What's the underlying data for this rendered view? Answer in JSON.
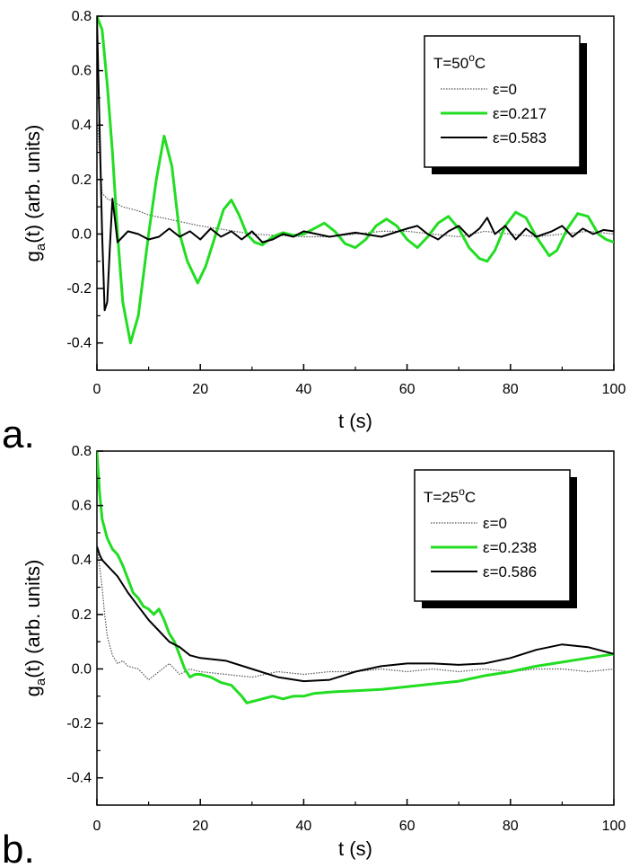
{
  "chart_data": [
    {
      "type": "line",
      "panel_label": "a.",
      "xlabel": "t (s)",
      "ylabel_main": "g",
      "ylabel_sub": "a",
      "ylabel_rest": "(t) (arb. units)",
      "xlim": [
        0,
        100
      ],
      "ylim": [
        -0.5,
        0.8
      ],
      "xticks": [
        0,
        20,
        40,
        60,
        80,
        100
      ],
      "xtick_labels": [
        "0",
        "20",
        "40",
        "60",
        "80",
        "100"
      ],
      "yticks": [
        0.8,
        0.6,
        0.4,
        0.2,
        0.0,
        -0.2,
        -0.4
      ],
      "ytick_labels": [
        "0.8",
        "0.6",
        "0.4",
        "0.2",
        "0.0",
        "-0.2",
        "-0.4"
      ],
      "legend": {
        "title_main": "T=50",
        "title_sup": "o",
        "title_tail": "C",
        "position": "top-right",
        "entries": [
          "ε=0",
          "ε=0.217",
          "ε=0.583"
        ]
      },
      "series": [
        {
          "name": "ε=0",
          "color": "#555555",
          "style": "dotted",
          "x": [
            0,
            0.5,
            1,
            2,
            3,
            5,
            8,
            10,
            15,
            20,
            25,
            30,
            35,
            40,
            45,
            50,
            55,
            60,
            65,
            70,
            75,
            80,
            85,
            90,
            95,
            100
          ],
          "y": [
            0.45,
            0.3,
            0.15,
            0.13,
            0.12,
            0.1,
            0.085,
            0.07,
            0.05,
            0.03,
            0.015,
            0.0,
            -0.005,
            -0.01,
            -0.01,
            0.0,
            0.01,
            0.01,
            0.0,
            -0.01,
            0.01,
            0.0,
            -0.01,
            0.0,
            0.01,
            0.0
          ]
        },
        {
          "name": "ε=0.217",
          "color": "#22dd22",
          "style": "solid",
          "x": [
            0,
            1,
            2,
            3,
            4,
            5,
            6.5,
            8,
            10,
            11.5,
            13,
            14.5,
            16,
            17.5,
            19.5,
            21,
            23,
            24.5,
            26,
            27.5,
            29,
            30.5,
            32,
            34,
            36,
            38,
            40,
            42,
            44,
            46,
            48,
            50,
            52,
            54,
            56,
            58,
            60,
            62,
            64,
            66,
            68,
            70,
            72,
            74,
            75.5,
            77,
            79,
            81,
            83,
            85,
            87.5,
            89,
            91,
            93,
            95,
            97,
            98.5,
            100
          ],
          "y": [
            0.8,
            0.75,
            0.55,
            0.3,
            0.0,
            -0.25,
            -0.4,
            -0.3,
            0.0,
            0.2,
            0.36,
            0.25,
            0.0,
            -0.1,
            -0.18,
            -0.12,
            0.0,
            0.09,
            0.125,
            0.07,
            0.0,
            -0.03,
            -0.04,
            -0.01,
            0.005,
            -0.005,
            0.0,
            0.02,
            0.04,
            0.01,
            -0.035,
            -0.05,
            -0.02,
            0.03,
            0.055,
            0.03,
            -0.02,
            -0.05,
            -0.01,
            0.04,
            0.065,
            0.02,
            -0.05,
            -0.09,
            -0.1,
            -0.06,
            0.03,
            0.08,
            0.06,
            -0.01,
            -0.08,
            -0.06,
            0.02,
            0.075,
            0.065,
            0.0,
            -0.02,
            -0.03
          ]
        },
        {
          "name": "ε=0.583",
          "color": "#000000",
          "style": "solid",
          "x": [
            0,
            0.5,
            1,
            1.5,
            2,
            2.5,
            3,
            3.5,
            4,
            5,
            6,
            8,
            10,
            12,
            14,
            16,
            18,
            20,
            22,
            24,
            26,
            28,
            30,
            32,
            34,
            36,
            38,
            40,
            45,
            50,
            55,
            60,
            62,
            64,
            66,
            68,
            70,
            72,
            74,
            75.5,
            77,
            79,
            81,
            83,
            85,
            88,
            90,
            92,
            94,
            96,
            98,
            100
          ],
          "y": [
            0.8,
            0.4,
            0.0,
            -0.28,
            -0.25,
            -0.05,
            0.13,
            0.05,
            -0.03,
            -0.01,
            0.01,
            0.0,
            -0.02,
            -0.01,
            0.02,
            -0.01,
            0.01,
            -0.02,
            0.02,
            -0.01,
            0.01,
            -0.02,
            0.01,
            -0.03,
            -0.02,
            0.0,
            -0.01,
            0.01,
            -0.01,
            0.005,
            -0.01,
            0.02,
            0.03,
            0.0,
            -0.02,
            0.01,
            0.03,
            -0.01,
            0.02,
            0.06,
            0.0,
            0.03,
            -0.02,
            0.02,
            -0.01,
            0.01,
            0.03,
            -0.01,
            0.02,
            0.0,
            0.015,
            0.01
          ]
        }
      ]
    },
    {
      "type": "line",
      "panel_label": "b.",
      "xlabel": "t (s)",
      "ylabel_main": "g",
      "ylabel_sub": "a",
      "ylabel_rest": "(t) (arb. units)",
      "xlim": [
        0,
        100
      ],
      "ylim": [
        -0.5,
        0.8
      ],
      "xticks": [
        0,
        20,
        40,
        60,
        80,
        100
      ],
      "xtick_labels": [
        "0",
        "20",
        "40",
        "60",
        "80",
        "100"
      ],
      "yticks": [
        0.8,
        0.6,
        0.4,
        0.2,
        0.0,
        -0.2,
        -0.4
      ],
      "ytick_labels": [
        "0.8",
        "0.6",
        "0.4",
        "0.2",
        "0.0",
        "-0.2",
        "-0.4"
      ],
      "legend": {
        "title_main": "T=25",
        "title_sup": "o",
        "title_tail": "C",
        "position": "top-right",
        "entries": [
          "ε=0",
          "ε=0.238",
          "ε=0.586"
        ]
      },
      "series": [
        {
          "name": "ε=0",
          "color": "#555555",
          "style": "dotted",
          "x": [
            0,
            0.5,
            1,
            1.5,
            2,
            3,
            4,
            5,
            6,
            8,
            10,
            12,
            14,
            16,
            18,
            20,
            25,
            30,
            35,
            40,
            45,
            50,
            55,
            60,
            65,
            70,
            75,
            80,
            85,
            90,
            95,
            100
          ],
          "y": [
            0.45,
            0.38,
            0.3,
            0.2,
            0.12,
            0.05,
            0.02,
            0.03,
            0.01,
            0.0,
            -0.04,
            -0.01,
            0.02,
            -0.02,
            0.0,
            -0.01,
            -0.02,
            -0.03,
            -0.01,
            -0.02,
            -0.01,
            -0.01,
            0.0,
            -0.01,
            0.0,
            -0.01,
            0.0,
            -0.01,
            0.0,
            0.0,
            -0.01,
            0.0
          ]
        },
        {
          "name": "ε=0.238",
          "color": "#22dd22",
          "style": "solid",
          "x": [
            0,
            0.5,
            1,
            2,
            3,
            4,
            5,
            6,
            7,
            8,
            9,
            10,
            11,
            12,
            13,
            14,
            15,
            16,
            17,
            18,
            19,
            20,
            22,
            24,
            26,
            28,
            29,
            30,
            32,
            34,
            36,
            38,
            40,
            42,
            45,
            50,
            55,
            60,
            65,
            70,
            75,
            80,
            85,
            90,
            95,
            100
          ],
          "y": [
            0.8,
            0.65,
            0.55,
            0.48,
            0.44,
            0.42,
            0.38,
            0.33,
            0.28,
            0.26,
            0.23,
            0.22,
            0.2,
            0.22,
            0.18,
            0.13,
            0.1,
            0.05,
            0.0,
            -0.03,
            -0.02,
            -0.02,
            -0.03,
            -0.05,
            -0.06,
            -0.1,
            -0.125,
            -0.12,
            -0.11,
            -0.1,
            -0.11,
            -0.1,
            -0.1,
            -0.09,
            -0.085,
            -0.08,
            -0.075,
            -0.065,
            -0.055,
            -0.045,
            -0.025,
            -0.01,
            0.01,
            0.025,
            0.04,
            0.055
          ]
        },
        {
          "name": "ε=0.586",
          "color": "#000000",
          "style": "solid",
          "x": [
            0,
            0.5,
            1,
            2,
            3,
            4,
            5,
            6,
            8,
            10,
            12,
            14,
            16,
            18,
            20,
            25,
            30,
            35,
            40,
            45,
            50,
            55,
            60,
            65,
            70,
            75,
            80,
            85,
            90,
            95,
            100
          ],
          "y": [
            0.45,
            0.42,
            0.4,
            0.38,
            0.36,
            0.34,
            0.31,
            0.28,
            0.23,
            0.18,
            0.14,
            0.1,
            0.08,
            0.05,
            0.04,
            0.03,
            0.0,
            -0.03,
            -0.045,
            -0.04,
            -0.01,
            0.01,
            0.02,
            0.02,
            0.015,
            0.02,
            0.04,
            0.07,
            0.09,
            0.08,
            0.055
          ]
        }
      ]
    }
  ]
}
